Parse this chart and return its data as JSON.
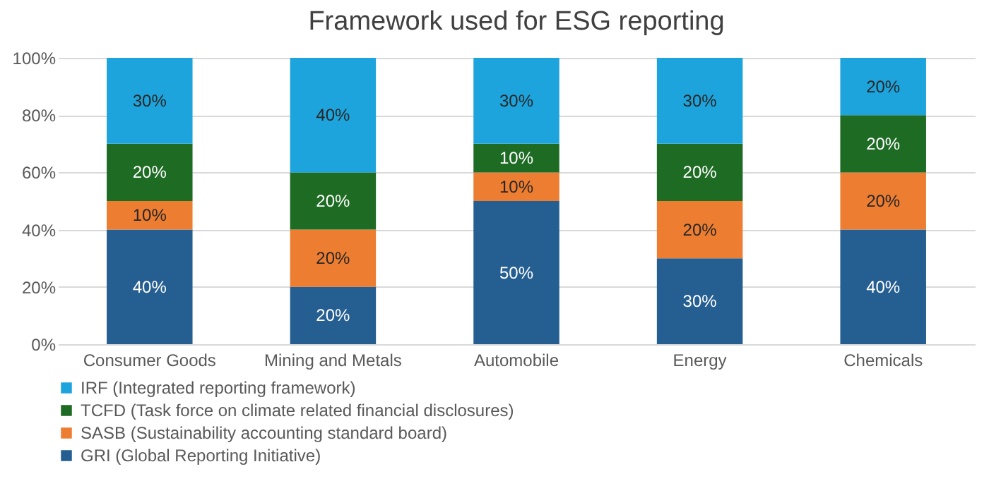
{
  "chart_data": {
    "type": "bar",
    "title": "Framework used for ESG reporting",
    "stacked": true,
    "categories": [
      "Consumer Goods",
      "Mining and Metals",
      "Automobile",
      "Energy",
      "Chemicals"
    ],
    "series": [
      {
        "name": "GRI (Global Reporting Initiative)",
        "color": "#255e91",
        "values": [
          40,
          20,
          50,
          30,
          40
        ],
        "value_labels": [
          "40%",
          "20%",
          "50%",
          "30%",
          "40%"
        ]
      },
      {
        "name": "SASB (Sustainability accounting standard board)",
        "color": "#ed7d31",
        "values": [
          10,
          20,
          10,
          20,
          20
        ],
        "value_labels": [
          "10%",
          "20%",
          "10%",
          "20%",
          "20%"
        ]
      },
      {
        "name": "TCFD (Task force on climate related financial disclosures)",
        "color": "#1e6b24",
        "values": [
          20,
          20,
          10,
          20,
          20
        ],
        "value_labels": [
          "20%",
          "20%",
          "10%",
          "20%",
          "20%"
        ]
      },
      {
        "name": "IRF (Integrated reporting framework)",
        "color": "#1ea4dc",
        "values": [
          30,
          40,
          30,
          30,
          20
        ],
        "value_labels": [
          "30%",
          "40%",
          "30%",
          "30%",
          "20%"
        ]
      }
    ],
    "ylim": [
      0,
      100
    ],
    "yticks": [
      {
        "value": 0,
        "label": "0%"
      },
      {
        "value": 20,
        "label": "20%"
      },
      {
        "value": 40,
        "label": "40%"
      },
      {
        "value": 60,
        "label": "60%"
      },
      {
        "value": 80,
        "label": "80%"
      },
      {
        "value": 100,
        "label": "100%"
      }
    ],
    "grid": true,
    "legend": "bottom"
  }
}
